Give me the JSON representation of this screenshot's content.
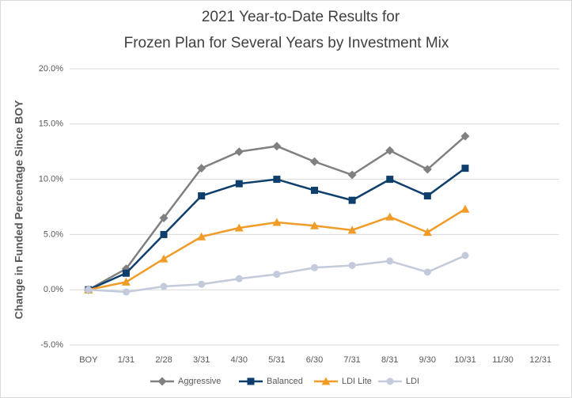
{
  "chart_data": {
    "type": "line",
    "title": [
      "2021 Year-to-Date Results for",
      "Frozen Plan for Several Years by Investment Mix"
    ],
    "y_label": "Change in Funded Percentage Since BOY",
    "categories": [
      "BOY",
      "1/31",
      "2/28",
      "3/31",
      "4/30",
      "5/31",
      "6/30",
      "7/31",
      "8/31",
      "9/30",
      "10/31",
      "11/30",
      "12/31"
    ],
    "series": [
      {
        "name": "Aggressive",
        "color": "#808080",
        "marker": "diamond",
        "values": [
          0,
          1.9,
          6.5,
          11.0,
          12.5,
          13.0,
          11.6,
          10.4,
          12.6,
          10.9,
          13.9,
          null,
          null
        ]
      },
      {
        "name": "Balanced",
        "color": "#0e3f6c",
        "marker": "square",
        "values": [
          0,
          1.5,
          5.0,
          8.5,
          9.6,
          10.0,
          9.0,
          8.1,
          10.0,
          8.5,
          11.0,
          null,
          null
        ]
      },
      {
        "name": "LDI Lite",
        "color": "#f29c28",
        "marker": "triangle",
        "values": [
          0,
          0.7,
          2.8,
          4.8,
          5.6,
          6.1,
          5.8,
          5.4,
          6.6,
          5.2,
          7.3,
          null,
          null
        ]
      },
      {
        "name": "LDI",
        "color": "#c2cadb",
        "marker": "circle",
        "values": [
          0,
          -0.2,
          0.3,
          0.5,
          1.0,
          1.4,
          2.0,
          2.2,
          2.6,
          1.6,
          3.1,
          null,
          null
        ]
      }
    ],
    "ylim": [
      -5,
      20
    ],
    "yticks": [
      {
        "value": -5,
        "label": "-5.0%"
      },
      {
        "value": 0,
        "label": "0.0%"
      },
      {
        "value": 5,
        "label": "5.0%"
      },
      {
        "value": 10,
        "label": "10.0%"
      },
      {
        "value": 15,
        "label": "15.0%"
      },
      {
        "value": 20,
        "label": "20.0%"
      }
    ],
    "grid": true,
    "legend": "bottom"
  }
}
